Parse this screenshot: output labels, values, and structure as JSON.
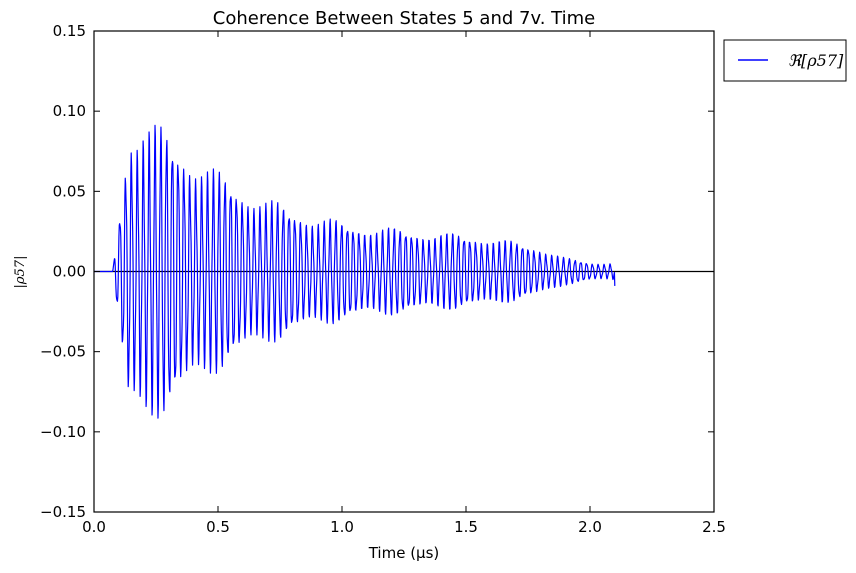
{
  "chart_data": {
    "type": "line",
    "title": "Coherence Between States 5 and 7v. Time",
    "xlabel": "Time (μs)",
    "ylabel": "|ρ57|",
    "xlim": [
      0.0,
      2.5
    ],
    "ylim": [
      -0.15,
      0.15
    ],
    "x_ticks": [
      "0.0",
      "0.5",
      "1.0",
      "1.5",
      "2.0",
      "2.5"
    ],
    "y_ticks": [
      "0.15",
      "0.10",
      "0.05",
      "0.00",
      "−0.05",
      "−0.10",
      "−0.15"
    ],
    "grid": false,
    "zero_line": true,
    "legend_position": "outside-top-right",
    "series": [
      {
        "name": "ℜ[ρ57]",
        "color": "#0000ff",
        "x_start": 0.0,
        "signal_start": 0.075,
        "x_end": 2.1,
        "oscillation_frequency": 42.5,
        "envelope": [
          {
            "x": 0.075,
            "amplitude": 0.0
          },
          {
            "x": 0.1,
            "amplitude": 0.035
          },
          {
            "x": 0.14,
            "amplitude": 0.098
          },
          {
            "x": 0.2,
            "amplitude": 0.103
          },
          {
            "x": 0.3,
            "amplitude": 0.092
          },
          {
            "x": 0.4,
            "amplitude": 0.078
          },
          {
            "x": 0.5,
            "amplitude": 0.066
          },
          {
            "x": 0.6,
            "amplitude": 0.056
          },
          {
            "x": 0.7,
            "amplitude": 0.048
          },
          {
            "x": 0.8,
            "amplitude": 0.042
          },
          {
            "x": 0.9,
            "amplitude": 0.037
          },
          {
            "x": 1.0,
            "amplitude": 0.033
          },
          {
            "x": 1.2,
            "amplitude": 0.029
          },
          {
            "x": 1.4,
            "amplitude": 0.026
          },
          {
            "x": 1.6,
            "amplitude": 0.023
          },
          {
            "x": 1.8,
            "amplitude": 0.016
          },
          {
            "x": 1.9,
            "amplitude": 0.009
          },
          {
            "x": 2.0,
            "amplitude": 0.006
          },
          {
            "x": 2.1,
            "amplitude": 0.006
          }
        ],
        "final_value": -0.009
      }
    ]
  }
}
